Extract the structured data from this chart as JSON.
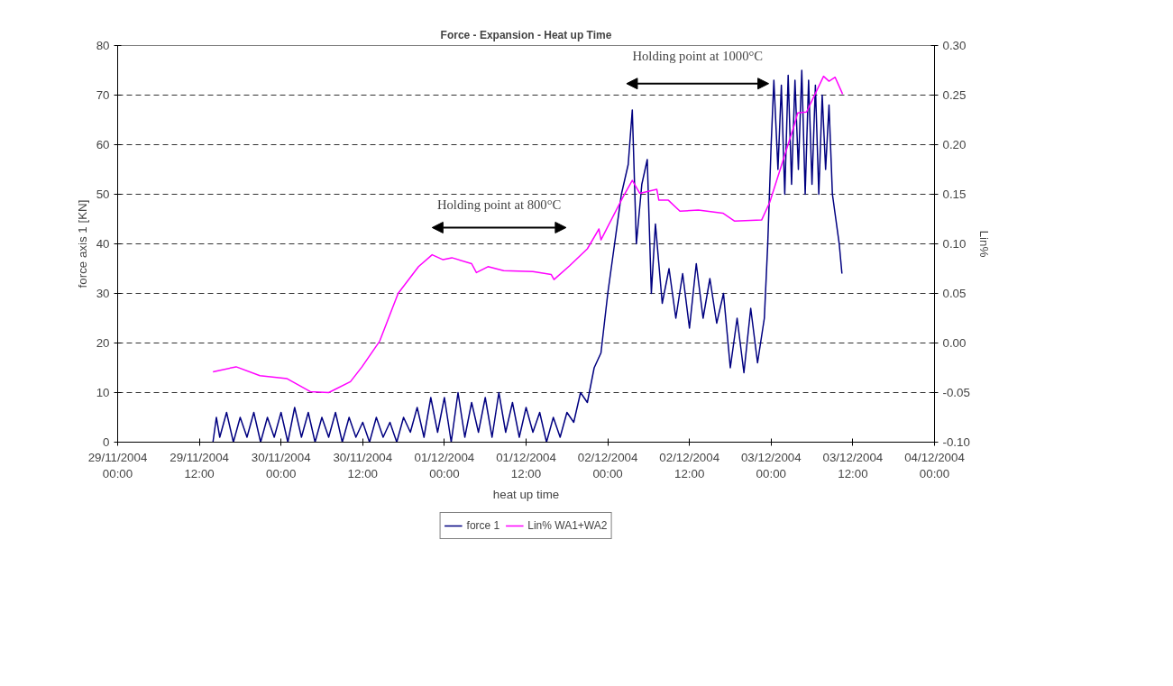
{
  "chart_data": {
    "type": "line",
    "title": "Force - Expansion - Heat up Time",
    "xlabel": "heat up time",
    "ylabel": "force axis 1 [KN]",
    "y2label": "Lin%",
    "xlim": [
      "2004-11-29T00:00",
      "2004-12-04T00:00"
    ],
    "xticks": [
      {
        "value": "2004-11-29T00:00",
        "label": "29/11/2004\n00:00"
      },
      {
        "value": "2004-11-29T12:00",
        "label": "29/11/2004\n12:00"
      },
      {
        "value": "2004-11-30T00:00",
        "label": "30/11/2004\n00:00"
      },
      {
        "value": "2004-11-30T12:00",
        "label": "30/11/2004\n12:00"
      },
      {
        "value": "2004-12-01T00:00",
        "label": "01/12/2004\n00:00"
      },
      {
        "value": "2004-12-01T12:00",
        "label": "01/12/2004\n12:00"
      },
      {
        "value": "2004-12-02T00:00",
        "label": "02/12/2004\n00:00"
      },
      {
        "value": "2004-12-02T12:00",
        "label": "02/12/2004\n12:00"
      },
      {
        "value": "2004-12-03T00:00",
        "label": "03/12/2004\n00:00"
      },
      {
        "value": "2004-12-03T12:00",
        "label": "03/12/2004\n12:00"
      },
      {
        "value": "2004-12-04T00:00",
        "label": "04/12/2004\n00:00"
      }
    ],
    "ylim": [
      0,
      80
    ],
    "yticks": [
      0,
      10,
      20,
      30,
      40,
      50,
      60,
      70,
      80
    ],
    "y2lim": [
      -0.1,
      0.3
    ],
    "y2ticks": [
      {
        "value": -0.1,
        "label": "-0.10"
      },
      {
        "value": -0.05,
        "label": "-0.05"
      },
      {
        "value": 0,
        "label": "0.00"
      },
      {
        "value": 0.05,
        "label": "0.05"
      },
      {
        "value": 0.1,
        "label": "0.10"
      },
      {
        "value": 0.15,
        "label": "0.15"
      },
      {
        "value": 0.2,
        "label": "0.20"
      },
      {
        "value": 0.25,
        "label": "0.25"
      },
      {
        "value": 0.3,
        "label": "0.30"
      }
    ],
    "grid": true,
    "legend": "bottom",
    "marker": "none",
    "line_style": "solid",
    "annotations": [
      "Holding point at 800°C",
      "Holding point at 1000°C"
    ],
    "series": [
      {
        "name": "force 1",
        "color": "#000080",
        "x": [
          "2004-11-29T14:00",
          "2004-11-29T14:30",
          "2004-11-29T15:00",
          "2004-11-29T16:00",
          "2004-11-29T17:00",
          "2004-11-29T18:00",
          "2004-11-29T19:00",
          "2004-11-29T20:00",
          "2004-11-29T21:00",
          "2004-11-29T22:00",
          "2004-11-29T23:00",
          "2004-11-30T00:00",
          "2004-11-30T01:00",
          "2004-11-30T02:00",
          "2004-11-30T03:00",
          "2004-11-30T04:00",
          "2004-11-30T05:00",
          "2004-11-30T06:00",
          "2004-11-30T07:00",
          "2004-11-30T08:00",
          "2004-11-30T09:00",
          "2004-11-30T10:00",
          "2004-11-30T11:00",
          "2004-11-30T12:00",
          "2004-11-30T13:00",
          "2004-11-30T14:00",
          "2004-11-30T15:00",
          "2004-11-30T16:00",
          "2004-11-30T17:00",
          "2004-11-30T18:00",
          "2004-11-30T19:00",
          "2004-11-30T20:00",
          "2004-11-30T21:00",
          "2004-11-30T22:00",
          "2004-11-30T23:00",
          "2004-12-01T00:00",
          "2004-12-01T01:00",
          "2004-12-01T02:00",
          "2004-12-01T03:00",
          "2004-12-01T04:00",
          "2004-12-01T05:00",
          "2004-12-01T06:00",
          "2004-12-01T07:00",
          "2004-12-01T08:00",
          "2004-12-01T09:00",
          "2004-12-01T10:00",
          "2004-12-01T11:00",
          "2004-12-01T12:00",
          "2004-12-01T13:00",
          "2004-12-01T14:00",
          "2004-12-01T15:00",
          "2004-12-01T16:00",
          "2004-12-01T17:00",
          "2004-12-01T18:00",
          "2004-12-01T19:00",
          "2004-12-01T20:00",
          "2004-12-01T21:00",
          "2004-12-01T22:00",
          "2004-12-01T23:00",
          "2004-12-02T00:00",
          "2004-12-02T01:00",
          "2004-12-02T02:00",
          "2004-12-02T03:00",
          "2004-12-02T03:36",
          "2004-12-02T04:12",
          "2004-12-02T05:00",
          "2004-12-02T05:48",
          "2004-12-02T06:24",
          "2004-12-02T07:00",
          "2004-12-02T08:00",
          "2004-12-02T09:00",
          "2004-12-02T10:00",
          "2004-12-02T11:00",
          "2004-12-02T12:00",
          "2004-12-02T13:00",
          "2004-12-02T14:00",
          "2004-12-02T15:00",
          "2004-12-02T16:00",
          "2004-12-02T17:00",
          "2004-12-02T18:00",
          "2004-12-02T19:00",
          "2004-12-02T20:00",
          "2004-12-02T21:00",
          "2004-12-02T22:00",
          "2004-12-02T23:00",
          "2004-12-02T23:30",
          "2004-12-03T00:00",
          "2004-12-03T00:24",
          "2004-12-03T01:00",
          "2004-12-03T01:30",
          "2004-12-03T02:00",
          "2004-12-03T02:30",
          "2004-12-03T03:00",
          "2004-12-03T03:30",
          "2004-12-03T04:00",
          "2004-12-03T04:30",
          "2004-12-03T05:00",
          "2004-12-03T05:30",
          "2004-12-03T06:00",
          "2004-12-03T06:30",
          "2004-12-03T07:00",
          "2004-12-03T07:30",
          "2004-12-03T08:00",
          "2004-12-03T08:30",
          "2004-12-03T09:00",
          "2004-12-03T09:30",
          "2004-12-03T10:00",
          "2004-12-03T10:24"
        ],
        "values": [
          0,
          5,
          1,
          6,
          0,
          5,
          1,
          6,
          0,
          5,
          1,
          6,
          0,
          7,
          1,
          6,
          0,
          5,
          1,
          6,
          0,
          5,
          1,
          4,
          0,
          5,
          1,
          4,
          0,
          5,
          2,
          7,
          1,
          9,
          2,
          9,
          0,
          10,
          1,
          8,
          2,
          9,
          1,
          10,
          2,
          8,
          1,
          7,
          2,
          6,
          0,
          5,
          1,
          6,
          4,
          10,
          8,
          15,
          18,
          30,
          40,
          50,
          56,
          67,
          40,
          52,
          57,
          30,
          44,
          28,
          35,
          25,
          34,
          23,
          36,
          25,
          33,
          24,
          30,
          15,
          25,
          14,
          27,
          16,
          25,
          40,
          60,
          73,
          55,
          72,
          50,
          74,
          52,
          73,
          55,
          75,
          50,
          73,
          52,
          72,
          50,
          70,
          55,
          68,
          50,
          45,
          40,
          34
        ]
      },
      {
        "name": "Lin% WA1+WA2",
        "color": "#ff00ff",
        "axis": "y2",
        "x": [
          "2004-11-29T14:00",
          "2004-11-29T17:24",
          "2004-11-29T20:54",
          "2004-11-30T00:54",
          "2004-11-30T04:18",
          "2004-11-30T07:00",
          "2004-11-30T10:12",
          "2004-11-30T11:54",
          "2004-11-30T14:30",
          "2004-11-30T17:12",
          "2004-11-30T20:12",
          "2004-11-30T22:12",
          "2004-11-30T23:48",
          "2004-12-01T01:06",
          "2004-12-01T04:00",
          "2004-12-01T04:42",
          "2004-12-01T06:24",
          "2004-12-01T08:42",
          "2004-12-01T13:00",
          "2004-12-01T15:42",
          "2004-12-01T16:06",
          "2004-12-01T18:24",
          "2004-12-01T21:00",
          "2004-12-01T22:42",
          "2004-12-01T23:00",
          "2004-12-02T02:18",
          "2004-12-02T03:36",
          "2004-12-02T04:42",
          "2004-12-02T07:12",
          "2004-12-02T07:30",
          "2004-12-02T08:54",
          "2004-12-02T10:36",
          "2004-12-02T13:18",
          "2004-12-02T16:54",
          "2004-12-02T18:36",
          "2004-12-02T22:36",
          "2004-12-02T23:48",
          "2004-12-03T03:30",
          "2004-12-03T03:54",
          "2004-12-03T05:12",
          "2004-12-03T07:42",
          "2004-12-03T08:30",
          "2004-12-03T09:24",
          "2004-12-03T10:30"
        ],
        "values": [
          -0.029,
          -0.024,
          -0.033,
          -0.036,
          -0.049,
          -0.05,
          -0.039,
          -0.024,
          0.002,
          0.05,
          0.077,
          0.089,
          0.084,
          0.086,
          0.08,
          0.071,
          0.077,
          0.073,
          0.072,
          0.069,
          0.064,
          0.078,
          0.095,
          0.115,
          0.104,
          0.148,
          0.164,
          0.151,
          0.155,
          0.144,
          0.144,
          0.133,
          0.134,
          0.131,
          0.123,
          0.124,
          0.142,
          0.222,
          0.232,
          0.233,
          0.269,
          0.264,
          0.268,
          0.251
        ]
      }
    ]
  }
}
